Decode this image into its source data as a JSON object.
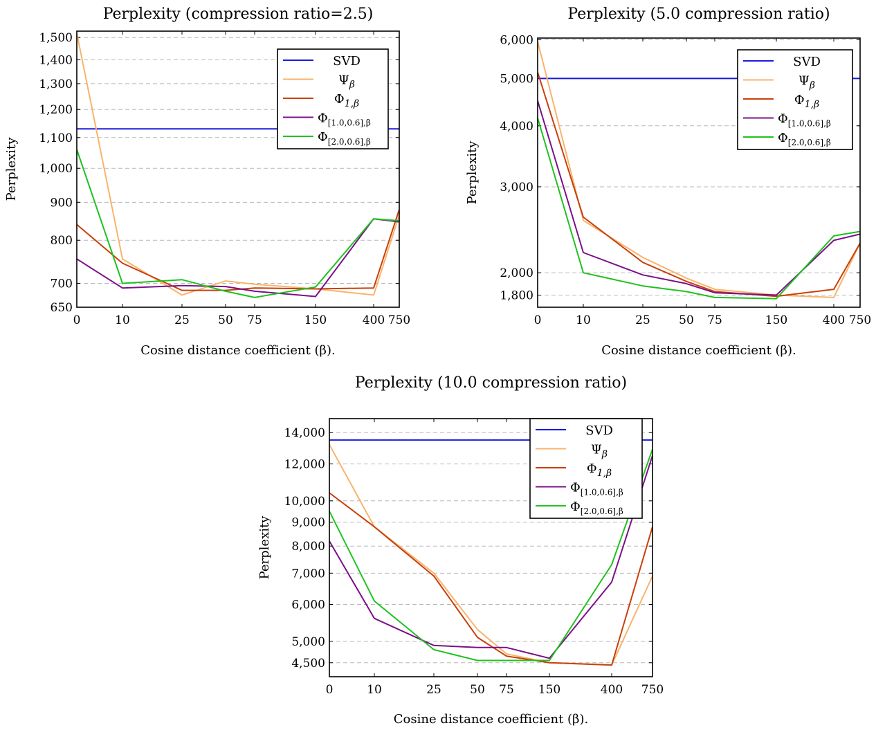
{
  "chart_data": [
    {
      "type": "line",
      "title": "Perplexity (compression ratio=2.5)",
      "xlabel": "Cosine distance coefficient (β).",
      "ylabel": "Perplexity",
      "x_ticks": [
        "0",
        "10",
        "25",
        "50",
        "75",
        "150",
        "400",
        "750"
      ],
      "y_scale": "log",
      "y_ticks": [
        650,
        700,
        800,
        900,
        1000,
        1100,
        1200,
        1300,
        1400,
        1500
      ],
      "y_tick_labels": [
        "650",
        "700",
        "800",
        "900",
        "1,000",
        "1,100",
        "1,200",
        "1,300",
        "1,400",
        "1,500"
      ],
      "ylim": [
        650,
        1530
      ],
      "grid": "horizontal dashed",
      "legend_position": "top-right",
      "series": [
        {
          "name": "SVD",
          "legend": [
            "SVD"
          ],
          "color": "#1a1adb",
          "values": [
            1130,
            1130,
            1130,
            1130,
            1130,
            1130,
            1130,
            1130
          ]
        },
        {
          "name": "Ψβ",
          "legend": [
            "Ψ",
            "β"
          ],
          "color": "#f9b36b",
          "values": [
            1520,
            755,
            675,
            705,
            698,
            688,
            675,
            865
          ]
        },
        {
          "name": "Φ1,β",
          "legend": [
            "Φ",
            "1,β"
          ],
          "color": "#c8400a",
          "values": [
            840,
            745,
            685,
            685,
            690,
            688,
            690,
            880
          ]
        },
        {
          "name": "Φ[1.0,0.6],β",
          "legend": [
            "Φ",
            "[1.0,0.6],β"
          ],
          "color": "#7b1088",
          "values": [
            755,
            690,
            695,
            693,
            683,
            672,
            855,
            847
          ]
        },
        {
          "name": "Φ[2.0,0.6],β",
          "legend": [
            "Φ",
            "[2.0,0.6],β"
          ],
          "color": "#1ec21e",
          "values": [
            1060,
            700,
            708,
            683,
            670,
            692,
            855,
            850
          ]
        }
      ]
    },
    {
      "type": "line",
      "title": "Perplexity (5.0 compression ratio)",
      "xlabel": "Cosine distance coefficient (β).",
      "ylabel": "Perplexity",
      "x_ticks": [
        "0",
        "10",
        "25",
        "50",
        "75",
        "150",
        "400",
        "750"
      ],
      "y_scale": "log",
      "y_ticks": [
        1800,
        2000,
        3000,
        4000,
        5000,
        6000
      ],
      "y_tick_labels": [
        "1,800",
        "2,000",
        "3,000",
        "4,000",
        "5,000",
        "6,000"
      ],
      "ylim": [
        1700,
        6050
      ],
      "grid": "horizontal dashed",
      "legend_position": "top-right",
      "series": [
        {
          "name": "SVD",
          "legend": [
            "SVD"
          ],
          "color": "#1a1adb",
          "values": [
            5000,
            5000,
            5000,
            5000,
            5000,
            5000,
            5000,
            5000
          ]
        },
        {
          "name": "Ψβ",
          "legend": [
            "Ψ",
            "β"
          ],
          "color": "#f9b36b",
          "values": [
            5950,
            2560,
            2150,
            1950,
            1850,
            1800,
            1780,
            2300
          ]
        },
        {
          "name": "Φ1,β",
          "legend": [
            "Φ",
            "1,β"
          ],
          "color": "#c8400a",
          "values": [
            5150,
            2600,
            2100,
            1920,
            1830,
            1790,
            1850,
            2300
          ]
        },
        {
          "name": "Φ[1.0,0.6],β",
          "legend": [
            "Φ",
            "[1.0,0.6],β"
          ],
          "color": "#7b1088",
          "values": [
            4500,
            2200,
            1980,
            1900,
            1820,
            1800,
            2330,
            2400
          ]
        },
        {
          "name": "Φ[2.0,0.6],β",
          "legend": [
            "Φ",
            "[2.0,0.6],β"
          ],
          "color": "#1ec21e",
          "values": [
            4150,
            2000,
            1880,
            1830,
            1780,
            1770,
            2380,
            2430
          ]
        }
      ]
    },
    {
      "type": "line",
      "title": "Perplexity (10.0 compression ratio)",
      "xlabel": "Cosine distance coefficient (β).",
      "ylabel": "Perplexity",
      "x_ticks": [
        "0",
        "10",
        "25",
        "50",
        "75",
        "150",
        "400",
        "750"
      ],
      "y_scale": "log",
      "y_ticks": [
        4500,
        5000,
        6000,
        7000,
        8000,
        9000,
        10000,
        12000,
        14000
      ],
      "y_tick_labels": [
        "4,500",
        "5,000",
        "6,000",
        "7,000",
        "8,000",
        "9,000",
        "10,000",
        "12,000",
        "14,000"
      ],
      "ylim": [
        4200,
        15000
      ],
      "grid": "horizontal dashed",
      "legend_position": "top-right",
      "series": [
        {
          "name": "SVD",
          "legend": [
            "SVD"
          ],
          "color": "#1a1adb",
          "values": [
            13500,
            13500,
            13500,
            13500,
            13500,
            13500,
            13500,
            13500
          ]
        },
        {
          "name": "Ψβ",
          "legend": [
            "Ψ",
            "β"
          ],
          "color": "#f9b36b",
          "values": [
            13200,
            8800,
            7000,
            5300,
            4700,
            4500,
            4450,
            6900
          ]
        },
        {
          "name": "Φ1,β",
          "legend": [
            "Φ",
            "1,β"
          ],
          "color": "#c8400a",
          "values": [
            10400,
            8800,
            6900,
            5100,
            4650,
            4500,
            4450,
            8800
          ]
        },
        {
          "name": "Φ[1.0,0.6],β",
          "legend": [
            "Φ",
            "[1.0,0.6],β"
          ],
          "color": "#7b1088",
          "values": [
            8200,
            5600,
            4900,
            4850,
            4850,
            4600,
            6700,
            12500
          ]
        },
        {
          "name": "Φ[2.0,0.6],β",
          "legend": [
            "Φ",
            "[2.0,0.6],β"
          ],
          "color": "#1ec21e",
          "values": [
            9500,
            6100,
            4800,
            4550,
            4550,
            4550,
            7300,
            12900
          ]
        }
      ]
    }
  ]
}
